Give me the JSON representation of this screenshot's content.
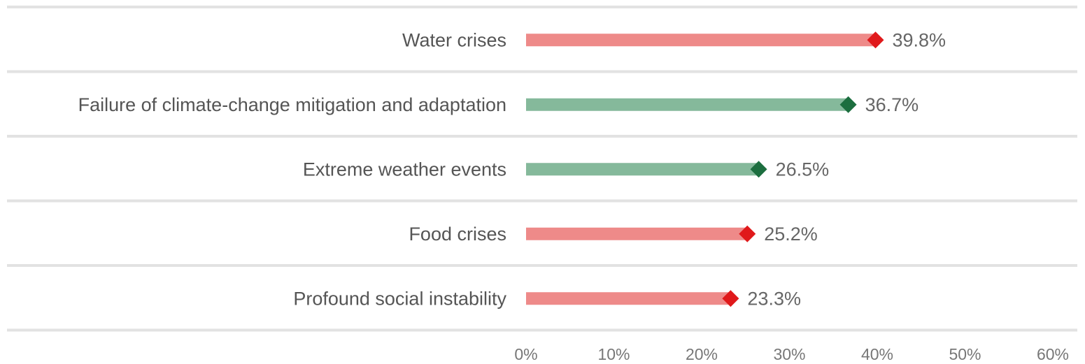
{
  "chart_data": {
    "type": "bar",
    "orientation": "horizontal",
    "categories": [
      "Water crises",
      "Failure of climate-change mitigation and adaptation",
      "Extreme weather events",
      "Food crises",
      "Profound social instability"
    ],
    "values": [
      39.8,
      36.7,
      26.5,
      25.2,
      23.3
    ],
    "value_labels": [
      "39.8%",
      "36.7%",
      "26.5%",
      "25.2%",
      "23.3%"
    ],
    "groups": [
      "red",
      "green",
      "green",
      "red",
      "red"
    ],
    "xlim": [
      0,
      60
    ],
    "x_ticks": [
      0,
      10,
      20,
      30,
      40,
      50,
      60
    ],
    "x_tick_labels": [
      "0%",
      "10%",
      "20%",
      "30%",
      "40%",
      "50%",
      "60%"
    ],
    "grid": "horizontal separators",
    "colors": {
      "red_bar": "#ee8a89",
      "red_marker": "#e0191b",
      "green_bar": "#85b99b",
      "green_marker": "#1c6e3f",
      "separator": "#e2e2e2"
    }
  }
}
